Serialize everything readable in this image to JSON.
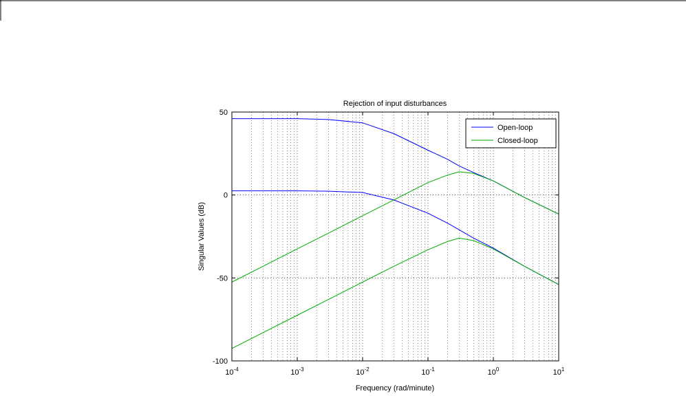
{
  "chart_data": {
    "type": "line",
    "title": "Rejection of input disturbances",
    "xlabel": "Frequency (rad/minute)",
    "ylabel": "Singular Values (dB)",
    "xscale": "log",
    "x": [
      0.0001,
      0.001,
      0.003,
      0.01,
      0.03,
      0.1,
      0.2,
      0.3,
      0.5,
      1,
      3,
      10
    ],
    "series": [
      {
        "name": "Open-loop",
        "color": "#0000ff",
        "values": [
          [
            46,
            46,
            45.5,
            43.5,
            37,
            27,
            21.5,
            17.5,
            13.5,
            8.5,
            -1.5,
            -11.5
          ],
          [
            2.5,
            2.5,
            2.3,
            1.5,
            -3,
            -11,
            -17,
            -21,
            -26,
            -32,
            -43,
            -54
          ]
        ]
      },
      {
        "name": "Closed-loop",
        "color": "#00aa00",
        "values": [
          [
            -52.5,
            -32.5,
            -23,
            -12.5,
            -3,
            7.5,
            12,
            14,
            13,
            8.5,
            -1.5,
            -11.5
          ],
          [
            -92.5,
            -72.5,
            -63,
            -52.5,
            -43,
            -33,
            -28,
            -26,
            -27.5,
            -32.5,
            -43,
            -54
          ]
        ]
      }
    ],
    "xlim": [
      0.0001,
      10
    ],
    "xticks": [
      {
        "value": 0.0001,
        "label": "10",
        "exponent": "-4"
      },
      {
        "value": 0.001,
        "label": "10",
        "exponent": "-3"
      },
      {
        "value": 0.01,
        "label": "10",
        "exponent": "-2"
      },
      {
        "value": 0.1,
        "label": "10",
        "exponent": "-1"
      },
      {
        "value": 1,
        "label": "10",
        "exponent": "0"
      },
      {
        "value": 10,
        "label": "10",
        "exponent": "1"
      }
    ],
    "ylim": [
      -100,
      50
    ],
    "yticks": [
      -100,
      -50,
      0,
      50
    ],
    "grid": true,
    "minor_grid": true,
    "legend": "upper right"
  }
}
